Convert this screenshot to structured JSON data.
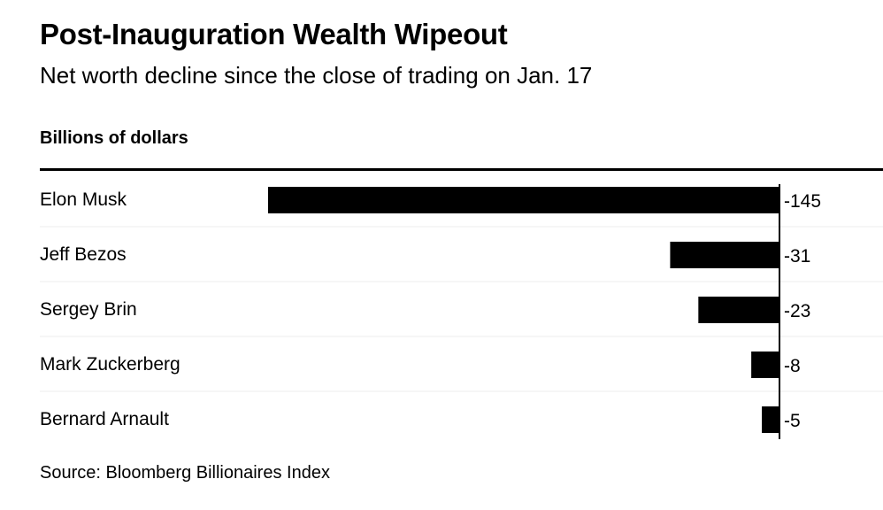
{
  "title": "Post-Inauguration Wealth Wipeout",
  "subtitle": "Net worth decline since the close of trading on Jan. 17",
  "units_label": "Billions of dollars",
  "source": "Source: Bloomberg Billionaires Index",
  "chart_data": {
    "type": "bar",
    "orientation": "horizontal",
    "title": "Post-Inauguration Wealth Wipeout",
    "subtitle": "Net worth decline since the close of trading on Jan. 17",
    "ylabel": "Billions of dollars",
    "categories": [
      "Elon Musk",
      "Jeff Bezos",
      "Sergey Brin",
      "Mark Zuckerberg",
      "Bernard Arnault"
    ],
    "values": [
      -145,
      -31,
      -23,
      -8,
      -5
    ],
    "value_labels": [
      "-145",
      "-31",
      "-23",
      "-8",
      "-5"
    ],
    "xlim": [
      -145,
      0
    ],
    "bar_color": "#000000",
    "grid": false,
    "legend": "none"
  }
}
